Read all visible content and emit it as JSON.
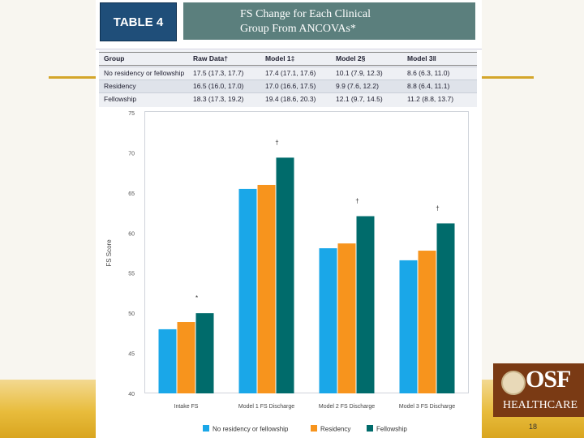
{
  "table": {
    "label": "TABLE 4",
    "title_line1": "FS Change for Each Clinical",
    "title_line2": "Group From ANCOVAs*",
    "columns": [
      "Group",
      "Raw Data†",
      "Model 1‡",
      "Model 2§",
      "Model 3‖"
    ],
    "rows": [
      [
        "No residency or fellowship",
        "17.5 (17.3, 17.7)",
        "17.4 (17.1, 17.6)",
        "10.1 (7.9, 12.3)",
        "8.6 (6.3, 11.0)"
      ],
      [
        "Residency",
        "16.5 (16.0, 17.0)",
        "17.0 (16.6, 17.5)",
        "9.9 (7.6, 12.2)",
        "8.8 (6.4, 11.1)"
      ],
      [
        "Fellowship",
        "18.3 (17.3, 19.2)",
        "19.4 (18.6, 20.3)",
        "12.1 (9.7, 14.5)",
        "11.2 (8.8, 13.7)"
      ]
    ]
  },
  "chart_data": {
    "type": "bar",
    "title": "",
    "xlabel": "",
    "ylabel": "FS Score",
    "ylim": [
      40,
      75
    ],
    "yticks": [
      40,
      45,
      50,
      55,
      60,
      65,
      70,
      75
    ],
    "categories": [
      "Intake FS",
      "Model 1 FS Discharge",
      "Model 2 FS Discharge",
      "Model 3 FS Discharge"
    ],
    "series": [
      {
        "name": "No residency or fellowship",
        "color": "#1aa7e8",
        "values": [
          48.0,
          65.5,
          58.1,
          56.6
        ]
      },
      {
        "name": "Residency",
        "color": "#f7941d",
        "values": [
          48.9,
          66.0,
          58.7,
          57.8
        ]
      },
      {
        "name": "Fellowship",
        "color": "#006b6b",
        "values": [
          50.0,
          69.4,
          62.1,
          61.2
        ]
      }
    ],
    "annotations": [
      "*",
      "†",
      "†",
      "†"
    ]
  },
  "slide": {
    "page_number": "18",
    "logo_text": "OSF",
    "logo_subtext": "HEALTHCARE"
  }
}
